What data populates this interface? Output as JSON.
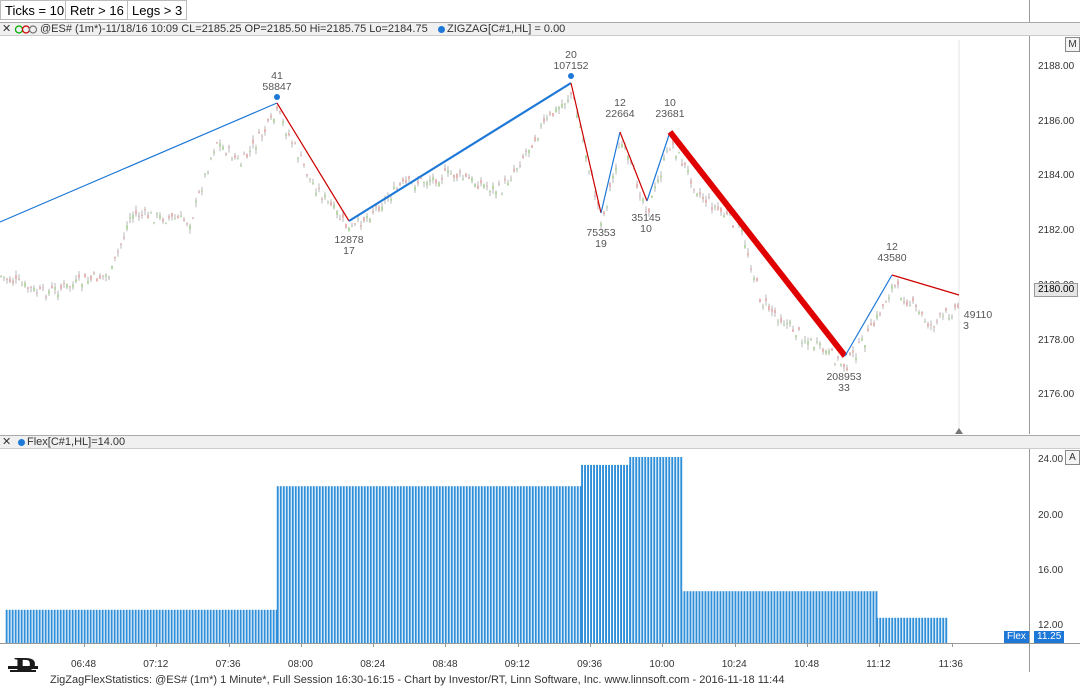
{
  "toolbar": {
    "ticks_label": "Ticks = 10",
    "retr_label": "Retr > 16",
    "legs_label": "Legs > 3"
  },
  "price_pane": {
    "header_text": "@ES# (1m*)-11/18/16 10:09 CL=2185.25 OP=2185.50 Hi=2185.75 Lo=2184.75",
    "indicator_label": "ZIGZAG[C#1,HL] = 0.00",
    "maximize_label": "M",
    "current_price": "2180.00",
    "y_ticks": [
      "2188.00",
      "2186.00",
      "2184.00",
      "2182.00",
      "2180.00",
      "2178.00",
      "2176.00"
    ],
    "pivots": [
      {
        "top": "41",
        "bottom": "58847"
      },
      {
        "top": "12878",
        "bottom": "17"
      },
      {
        "top": "20",
        "bottom": "107152"
      },
      {
        "top": "75353",
        "bottom": "19"
      },
      {
        "top": "12",
        "bottom": "22664"
      },
      {
        "top": "35145",
        "bottom": "10"
      },
      {
        "top": "10",
        "bottom": "23681"
      },
      {
        "top": "208953",
        "bottom": "33"
      },
      {
        "top": "12",
        "bottom": "43580"
      },
      {
        "top": "49110",
        "bottom": "3"
      }
    ]
  },
  "flex_pane": {
    "header_text": "Flex[C#1,HL]=14.00",
    "axis_button_label": "A",
    "flex_tag_label": "Flex",
    "flex_value": "11.25",
    "y_ticks": [
      "24.00",
      "20.00",
      "16.00",
      "12.00"
    ]
  },
  "chart_data": {
    "type": "bar",
    "title": "",
    "x_ticks": [
      "06:48",
      "07:12",
      "07:36",
      "08:00",
      "08:24",
      "08:48",
      "09:12",
      "09:36",
      "10:00",
      "10:24",
      "10:48",
      "11:12",
      "11:36"
    ],
    "segments": [
      {
        "start": "06:22",
        "end": "07:52",
        "value": 12.5
      },
      {
        "start": "07:52",
        "end": "09:33",
        "value": 21.8
      },
      {
        "start": "09:33",
        "end": "09:49",
        "value": 23.4
      },
      {
        "start": "09:49",
        "end": "10:06",
        "value": 24.0
      },
      {
        "start": "10:06",
        "end": "11:11",
        "value": 13.9
      },
      {
        "start": "11:11",
        "end": "11:34",
        "value": 11.9
      }
    ],
    "ylim": [
      10.0,
      24.6
    ],
    "grid": false,
    "color": "#2f8fd8"
  },
  "footer": {
    "status_text": "ZigZagFlexStatistics: @ES# (1m*) 1 Minute*, Full Session 16:30-16:15 - Chart by Investor/RT, Linn Software, Inc. www.linnsoft.com - 2016-11-18 11:44",
    "logo_letter": "R"
  },
  "colors": {
    "up_leg": "#1e78d7",
    "down_leg": "#cc0000",
    "highlight_leg": "#e00000",
    "bars": "#2f8fd8"
  }
}
